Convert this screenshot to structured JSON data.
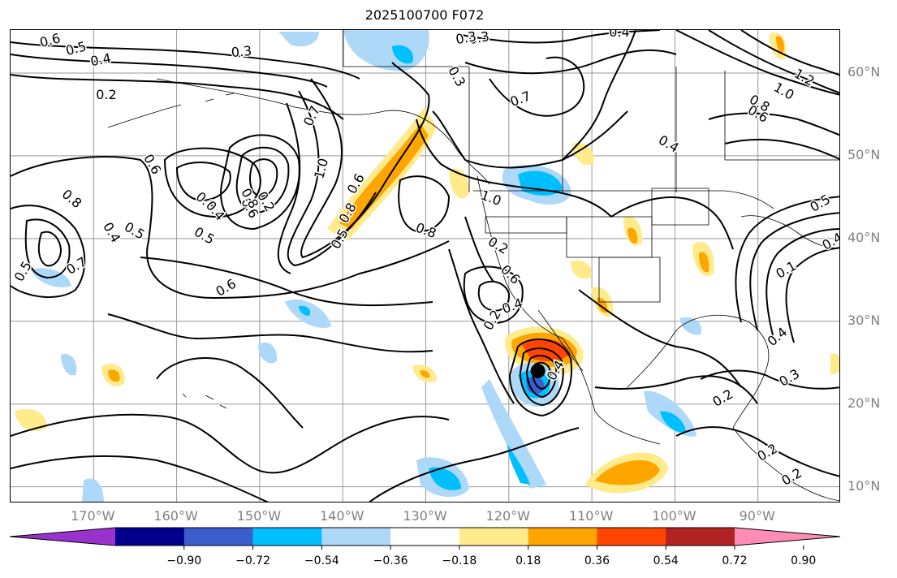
{
  "title": "2025100700 F072",
  "lat_labels": [
    {
      "value": 60,
      "text": "60°N"
    },
    {
      "value": 50,
      "text": "50°N"
    },
    {
      "value": 40,
      "text": "40°N"
    },
    {
      "value": 30,
      "text": "30°N"
    },
    {
      "value": 20,
      "text": "20°N"
    },
    {
      "value": 10,
      "text": "10°N"
    }
  ],
  "lon_labels": [
    {
      "value": -170,
      "text": "170°W"
    },
    {
      "value": -160,
      "text": "160°W"
    },
    {
      "value": -150,
      "text": "150°W"
    },
    {
      "value": -140,
      "text": "140°W"
    },
    {
      "value": -130,
      "text": "130°W"
    },
    {
      "value": -120,
      "text": "120°W"
    },
    {
      "value": -110,
      "text": "110°W"
    },
    {
      "value": -100,
      "text": "100°W"
    },
    {
      "value": -90,
      "text": "90°W"
    }
  ],
  "colorbar": {
    "colors": [
      "#9932cc",
      "#00008b",
      "#3a5fcd",
      "#00bfff",
      "#add8f8",
      "#ffffff",
      "#ffea8c",
      "#ffa500",
      "#ff4500",
      "#b22222",
      "#ff8cb4"
    ],
    "ticks": [
      "−0.90",
      "−0.72",
      "−0.54",
      "−0.36",
      "−0.18",
      "0.18",
      "0.36",
      "0.54",
      "0.72",
      "0.90"
    ]
  },
  "contour_labels": [
    "0.6",
    "0.5",
    "0.4",
    "0.3",
    "0.2",
    "0.3",
    "0.3",
    "0.4",
    "0.7",
    "0.4",
    "0.7",
    "1.0",
    "0.6",
    "0.8",
    "0.4",
    "0.6",
    "0.8",
    "0.2",
    "0.3",
    "1.0",
    "0.6",
    "0.8",
    "0.5",
    "0.4",
    "0.5",
    "0.5",
    "0.6",
    "0.8",
    "0.7",
    "0.5",
    "0.2",
    "0.2",
    "0.6",
    "0.4",
    "0.4",
    "0.4",
    "0.3",
    "0.2",
    "0.8",
    "0.6",
    "1.2",
    "1.0",
    "0.5",
    "0.1",
    "0.4",
    "0.8",
    "0.2",
    "0.2"
  ],
  "storm_center": {
    "lon": -116.5,
    "lat": 24
  }
}
